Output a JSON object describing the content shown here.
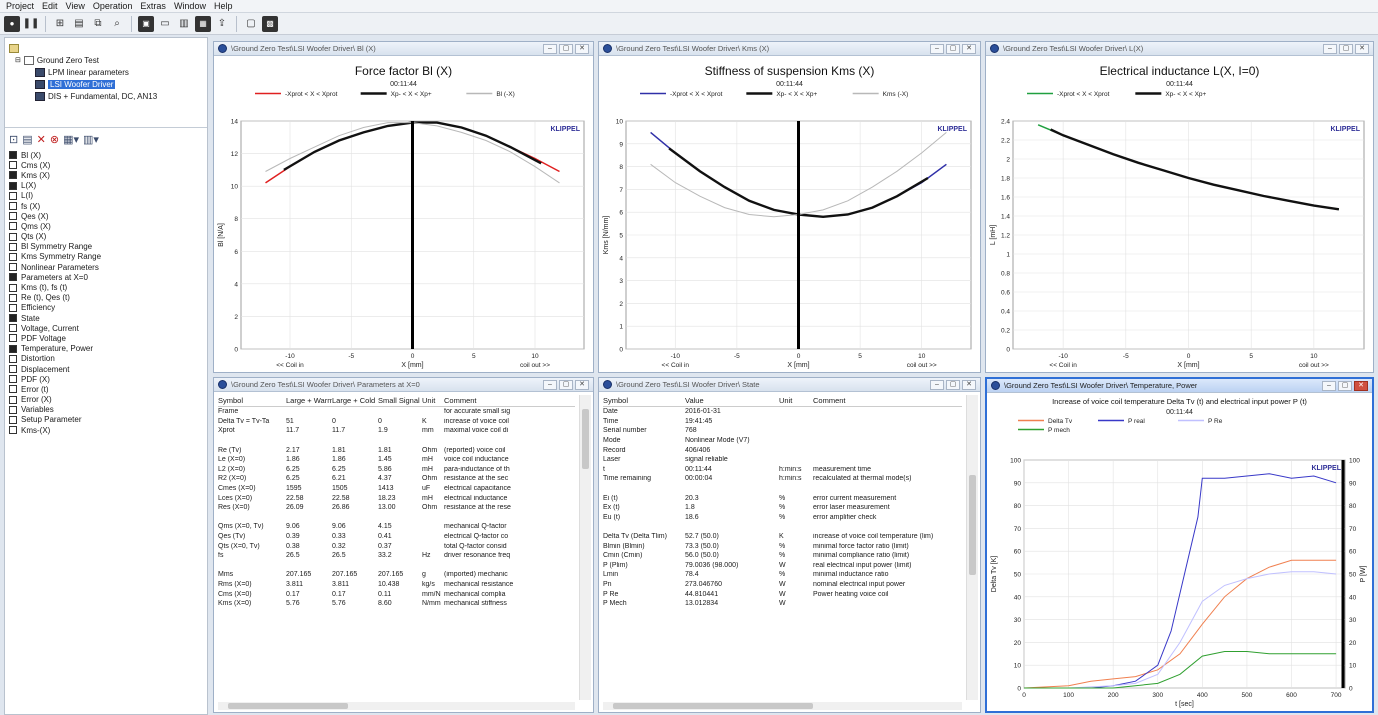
{
  "menu": [
    "Project",
    "Edit",
    "View",
    "Operation",
    "Extras",
    "Window",
    "Help"
  ],
  "tree": [
    {
      "label": "Ground Zero Test",
      "level": 1,
      "selected": false
    },
    {
      "label": "LPM linear parameters",
      "level": 2,
      "selected": false
    },
    {
      "label": "LSI Woofer Driver",
      "level": 2,
      "selected": true
    },
    {
      "label": "DIS + Fundamental, DC, AN13",
      "level": 2,
      "selected": false
    }
  ],
  "params": [
    {
      "label": "Bl (X)",
      "checked": true
    },
    {
      "label": "Cms (X)",
      "checked": false
    },
    {
      "label": "Kms (X)",
      "checked": true
    },
    {
      "label": "L(X)",
      "checked": true
    },
    {
      "label": "L(I)",
      "checked": false
    },
    {
      "label": "fs (X)",
      "checked": false
    },
    {
      "label": "Qes (X)",
      "checked": false
    },
    {
      "label": "Qms (X)",
      "checked": false
    },
    {
      "label": "Qts (X)",
      "checked": false
    },
    {
      "label": "Bl Symmetry Range",
      "checked": false
    },
    {
      "label": "Kms Symmetry Range",
      "checked": false
    },
    {
      "label": "Nonlinear Parameters",
      "checked": false
    },
    {
      "label": "Parameters at X=0",
      "checked": true
    },
    {
      "label": "Kms (t), fs (t)",
      "checked": false
    },
    {
      "label": "Re (t), Qes (t)",
      "checked": false
    },
    {
      "label": "Efficiency",
      "checked": false
    },
    {
      "label": "State",
      "checked": true
    },
    {
      "label": "Voltage, Current",
      "checked": false
    },
    {
      "label": "PDF Voltage",
      "checked": false
    },
    {
      "label": "Temperature, Power",
      "checked": true
    },
    {
      "label": "Distortion",
      "checked": false
    },
    {
      "label": "Displacement",
      "checked": false
    },
    {
      "label": "PDF (X)",
      "checked": false
    },
    {
      "label": "Error (t)",
      "checked": false
    },
    {
      "label": "Error (X)",
      "checked": false
    },
    {
      "label": "Variables",
      "checked": false
    },
    {
      "label": "Setup Parameter",
      "checked": false
    },
    {
      "label": "Kms-(X)",
      "checked": false
    }
  ],
  "windows": {
    "bl": {
      "title": "\\Ground Zero Test\\LSI Woofer Driver\\ Bl (X)"
    },
    "kms": {
      "title": "\\Ground Zero Test\\LSI Woofer Driver\\ Kms (X)"
    },
    "lx": {
      "title": "\\Ground Zero Test\\LSI Woofer Driver\\ L(X)"
    },
    "params": {
      "title": "\\Ground Zero Test\\LSI Woofer Driver\\ Parameters at X=0"
    },
    "state": {
      "title": "\\Ground Zero Test\\LSI Woofer Driver\\ State"
    },
    "temp": {
      "title": "\\Ground Zero Test\\LSI Woofer Driver\\ Temperature, Power"
    }
  },
  "chart_data": [
    {
      "id": "bl",
      "type": "line",
      "title": "Force factor Bl (X)",
      "subtitle": "00:11:44",
      "xlabel": "X [mm]",
      "xlabel_left": "<< Coil in",
      "xlabel_right": "coil out >>",
      "ylabel": "Bl [N/A]",
      "brand": "KLIPPEL",
      "xlim": [
        -14,
        14
      ],
      "ylim": [
        0,
        14
      ],
      "xticks": [
        -10,
        -5,
        0,
        5,
        10
      ],
      "yticks": [
        0,
        2,
        4,
        6,
        8,
        10,
        12,
        14
      ],
      "legend": [
        "-Xprot < X < Xprot",
        "Xp- < X < Xp+",
        "Bl (-X)"
      ],
      "series": [
        {
          "name": "-Xprot < X < Xprot",
          "color": "#e02020",
          "width": 1.5,
          "x": [
            -12,
            -10,
            -8,
            -6,
            -4,
            -2,
            0,
            2,
            4,
            6,
            8,
            10,
            12
          ],
          "y": [
            10.2,
            11.2,
            12.1,
            12.8,
            13.3,
            13.7,
            13.9,
            13.9,
            13.6,
            13.1,
            12.4,
            11.7,
            10.9
          ]
        },
        {
          "name": "Xp- < X < Xp+",
          "color": "#111111",
          "width": 2.4,
          "x": [
            -10.5,
            -8,
            -6,
            -4,
            -2,
            0,
            2,
            4,
            6,
            8,
            10.5
          ],
          "y": [
            11.0,
            12.1,
            12.8,
            13.3,
            13.7,
            13.9,
            13.9,
            13.6,
            13.1,
            12.4,
            11.4
          ]
        },
        {
          "name": "Bl (-X)",
          "color": "#b8b8b8",
          "width": 1,
          "x": [
            -12,
            -10,
            -8,
            -6,
            -4,
            -2,
            0,
            2,
            4,
            6,
            8,
            10,
            12
          ],
          "y": [
            10.9,
            11.7,
            12.4,
            13.1,
            13.6,
            13.9,
            13.9,
            13.7,
            13.3,
            12.8,
            12.1,
            11.2,
            10.2
          ]
        }
      ],
      "vline": 0
    },
    {
      "id": "kms",
      "type": "line",
      "title": "Stiffness of suspension Kms (X)",
      "subtitle": "00:11:44",
      "xlabel": "X [mm]",
      "xlabel_left": "<< Coil in",
      "xlabel_right": "coil out >>",
      "ylabel": "Kms [N/mm]",
      "brand": "KLIPPEL",
      "xlim": [
        -14,
        14
      ],
      "ylim": [
        0,
        10
      ],
      "xticks": [
        -10,
        -5,
        0,
        5,
        10
      ],
      "yticks": [
        0,
        1,
        2,
        3,
        4,
        5,
        6,
        7,
        8,
        9,
        10
      ],
      "legend": [
        "-Xprot < X < Xprot",
        "Xp- < X < Xp+",
        "Kms (-X)"
      ],
      "series": [
        {
          "name": "-Xprot < X < Xprot",
          "color": "#3030a8",
          "width": 1.5,
          "x": [
            -12,
            -10,
            -8,
            -6,
            -4,
            -2,
            0,
            2,
            4,
            6,
            8,
            10,
            12
          ],
          "y": [
            9.5,
            8.6,
            7.8,
            7.1,
            6.5,
            6.1,
            5.9,
            5.8,
            5.9,
            6.2,
            6.7,
            7.3,
            8.1
          ]
        },
        {
          "name": "Xp- < X < Xp+",
          "color": "#111111",
          "width": 2.4,
          "x": [
            -10.5,
            -8,
            -6,
            -4,
            -2,
            0,
            2,
            4,
            6,
            8,
            10.5
          ],
          "y": [
            8.8,
            7.8,
            7.1,
            6.5,
            6.1,
            5.9,
            5.8,
            5.9,
            6.2,
            6.7,
            7.5
          ]
        },
        {
          "name": "Kms (-X)",
          "color": "#b8b8b8",
          "width": 1,
          "x": [
            -12,
            -10,
            -8,
            -6,
            -4,
            -2,
            0,
            2,
            4,
            6,
            8,
            10,
            12
          ],
          "y": [
            8.1,
            7.3,
            6.7,
            6.2,
            5.9,
            5.8,
            5.9,
            6.1,
            6.5,
            7.1,
            7.8,
            8.6,
            9.5
          ]
        }
      ],
      "vline": 0
    },
    {
      "id": "lx",
      "type": "line",
      "title": "Electrical inductance L(X, I=0)",
      "subtitle": "00:11:44",
      "xlabel": "X [mm]",
      "xlabel_left": "<< Coil in",
      "xlabel_right": "coil out >>",
      "ylabel": "L [mH]",
      "brand": "KLIPPEL",
      "xlim": [
        -14,
        14
      ],
      "ylim": [
        0,
        2.4
      ],
      "xticks": [
        -10,
        -5,
        0,
        5,
        10
      ],
      "yticks": [
        0,
        0.2,
        0.4,
        0.6,
        0.8,
        1.0,
        1.2,
        1.4,
        1.6,
        1.8,
        2.0,
        2.2,
        2.4
      ],
      "legend": [
        "-Xprot < X < Xprot",
        "Xp- < X < Xp+"
      ],
      "series": [
        {
          "name": "-Xprot < X < Xprot",
          "color": "#20a040",
          "width": 1.5,
          "x": [
            -12,
            -10,
            -8,
            -6,
            -4,
            -2,
            0,
            2,
            4,
            6,
            8,
            10,
            12
          ],
          "y": [
            2.36,
            2.25,
            2.15,
            2.05,
            1.96,
            1.88,
            1.8,
            1.73,
            1.67,
            1.61,
            1.56,
            1.51,
            1.47
          ]
        },
        {
          "name": "Xp- < X < Xp+",
          "color": "#111111",
          "width": 2.4,
          "x": [
            -11,
            -10,
            -8,
            -6,
            -4,
            -2,
            0,
            2,
            4,
            6,
            8,
            10,
            12
          ],
          "y": [
            2.31,
            2.25,
            2.15,
            2.05,
            1.96,
            1.88,
            1.8,
            1.73,
            1.67,
            1.61,
            1.56,
            1.51,
            1.47
          ]
        }
      ]
    },
    {
      "id": "temp",
      "type": "line",
      "title": "Increase of voice coil temperature Delta Tv (t) and electrical input power P (t)",
      "subtitle": "00:11:44",
      "xlabel": "t [sec]",
      "ylabel": "Delta Tv [K]",
      "ylabel_right": "P [W]",
      "brand": "KLIPPEL",
      "xlim": [
        0,
        720
      ],
      "ylim": [
        0,
        100
      ],
      "ylim_right": [
        0,
        100
      ],
      "xticks": [
        0,
        100,
        200,
        300,
        400,
        500,
        600,
        700
      ],
      "yticks": [
        0,
        10,
        20,
        30,
        40,
        50,
        60,
        70,
        80,
        90,
        100
      ],
      "yticks_right": [
        0,
        10,
        20,
        30,
        40,
        50,
        60,
        70,
        80,
        90,
        100
      ],
      "legend": [
        "Delta Tv",
        "P real",
        "P Re",
        "P mech"
      ],
      "series": [
        {
          "name": "Delta Tv",
          "color": "#f08050",
          "width": 1,
          "x": [
            0,
            100,
            150,
            200,
            250,
            300,
            350,
            400,
            450,
            500,
            550,
            600,
            650,
            700
          ],
          "y": [
            0,
            1,
            3,
            4,
            5,
            8,
            15,
            28,
            40,
            48,
            53,
            56,
            56,
            56
          ]
        },
        {
          "name": "P real",
          "color": "#3838c8",
          "width": 1,
          "x": [
            0,
            100,
            150,
            200,
            250,
            300,
            330,
            360,
            390,
            400,
            450,
            500,
            550,
            600,
            650,
            700
          ],
          "y": [
            0,
            0,
            0,
            1,
            3,
            10,
            25,
            50,
            75,
            92,
            92,
            93,
            94,
            92,
            93,
            90
          ]
        },
        {
          "name": "P Re",
          "color": "#c0c0ff",
          "width": 1,
          "x": [
            0,
            100,
            200,
            250,
            300,
            350,
            400,
            450,
            500,
            550,
            600,
            650,
            700
          ],
          "y": [
            0,
            0,
            1,
            2,
            6,
            20,
            38,
            45,
            48,
            50,
            51,
            51,
            50
          ]
        },
        {
          "name": "P mech",
          "color": "#30a030",
          "width": 1,
          "x": [
            0,
            100,
            200,
            250,
            300,
            350,
            400,
            450,
            500,
            550,
            600,
            650,
            700
          ],
          "y": [
            0,
            0,
            0,
            1,
            2,
            6,
            14,
            16,
            16,
            15,
            15,
            15,
            15
          ]
        }
      ],
      "vline": 720
    }
  ],
  "param_table": {
    "headers": [
      "Symbol",
      "Large + Warm",
      "Large + Cold",
      "Small Signal",
      "Unit",
      "Comment"
    ],
    "rows": [
      [
        "Frame",
        "",
        "",
        "",
        "",
        "for accurate small sig"
      ],
      [
        "Delta Tv = Tv-Ta",
        "51",
        "0",
        "0",
        "K",
        "increase of voice coil"
      ],
      [
        "Xprot",
        "11.7",
        "11.7",
        "1.9",
        "mm",
        "maximal voice coil di"
      ],
      [
        "",
        "",
        "",
        "",
        "",
        ""
      ],
      [
        "Re (Tv)",
        "2.17",
        "1.81",
        "1.81",
        "Ohm",
        "(reported) voice coil"
      ],
      [
        "Le (X=0)",
        "1.86",
        "1.86",
        "1.45",
        "mH",
        "voice coil inductance"
      ],
      [
        "L2 (X=0)",
        "6.25",
        "6.25",
        "5.86",
        "mH",
        "para-inductance of th"
      ],
      [
        "R2 (X=0)",
        "6.25",
        "6.21",
        "4.37",
        "Ohm",
        "resistance at the sec"
      ],
      [
        "Cmes (X=0)",
        "1595",
        "1505",
        "1413",
        "uF",
        "electrical capacitance"
      ],
      [
        "Lces (X=0)",
        "22.58",
        "22.58",
        "18.23",
        "mH",
        "electrical inductance"
      ],
      [
        "Res (X=0)",
        "26.09",
        "26.86",
        "13.00",
        "Ohm",
        "resistance at the rese"
      ],
      [
        "",
        "",
        "",
        "",
        "",
        ""
      ],
      [
        "Qms (X=0, Tv)",
        "9.06",
        "9.06",
        "4.15",
        "",
        "mechanical Q-factor"
      ],
      [
        "Qes (Tv)",
        "0.39",
        "0.33",
        "0.41",
        "",
        "electrical Q-factor co"
      ],
      [
        "Qts (X=0, Tv)",
        "0.38",
        "0.32",
        "0.37",
        "",
        "total Q-factor consid"
      ],
      [
        "fs",
        "26.5",
        "26.5",
        "33.2",
        "Hz",
        "driver resonance freq"
      ],
      [
        "",
        "",
        "",
        "",
        "",
        ""
      ],
      [
        "Mms",
        "207.165",
        "207.165",
        "207.165",
        "g",
        "(imported) mechanic"
      ],
      [
        "Rms (X=0)",
        "3.811",
        "3.811",
        "10.438",
        "kg/s",
        "mechanical resistance"
      ],
      [
        "Cms (X=0)",
        "0.17",
        "0.17",
        "0.11",
        "mm/N",
        "mechanical complia"
      ],
      [
        "Kms (X=0)",
        "5.76",
        "5.76",
        "8.60",
        "N/mm",
        "mechanical stiffness"
      ]
    ]
  },
  "state_table": {
    "headers": [
      "Symbol",
      "Value",
      "Unit",
      "Comment"
    ],
    "rows": [
      [
        "Date",
        "2016-01-31",
        "",
        ""
      ],
      [
        "Time",
        "19:41:45",
        "",
        ""
      ],
      [
        "Serial number",
        "768",
        "",
        ""
      ],
      [
        "Mode",
        "Nonlinear Mode (V7)",
        "",
        ""
      ],
      [
        "Record",
        "406/406",
        "",
        ""
      ],
      [
        "Laser",
        "signal reliable",
        "",
        ""
      ],
      [
        "t",
        "00:11:44",
        "h:min:s",
        "measurement time"
      ],
      [
        "Time remaining",
        "00:00:04",
        "h:min:s",
        "recalculated at thermal mode(s)"
      ],
      [
        "",
        "",
        "",
        ""
      ],
      [
        "Ei (t)",
        "20.3",
        "%",
        "error current measurement"
      ],
      [
        "Ex (t)",
        "1.8",
        "%",
        "error laser measurement"
      ],
      [
        "Eu (t)",
        "18.6",
        "%",
        "error amplifier check"
      ],
      [
        "",
        "",
        "",
        ""
      ],
      [
        "Delta Tv (Delta Tlim)",
        "52.7 (50.0)",
        "K",
        "increase of voice coil temperature (lim)"
      ],
      [
        "Blmin (Blmin)",
        "73.3 (50.0)",
        "%",
        "minimal force factor ratio (limit)"
      ],
      [
        "Cmin (Cmin)",
        "56.0 (50.0)",
        "%",
        "minimal compliance ratio (limit)"
      ],
      [
        "P (Plim)",
        "79.0036 (98.000)",
        "W",
        "real electrical input power (limit)"
      ],
      [
        "Lmin",
        "78.4",
        "%",
        "minimal inductance ratio"
      ],
      [
        "Pn",
        "273.046760",
        "W",
        "nominal electrical input power"
      ],
      [
        "P Re",
        "44.810441",
        "W",
        "Power heating voice coil"
      ],
      [
        "P Mech",
        "13.012834",
        "W",
        ""
      ]
    ]
  }
}
